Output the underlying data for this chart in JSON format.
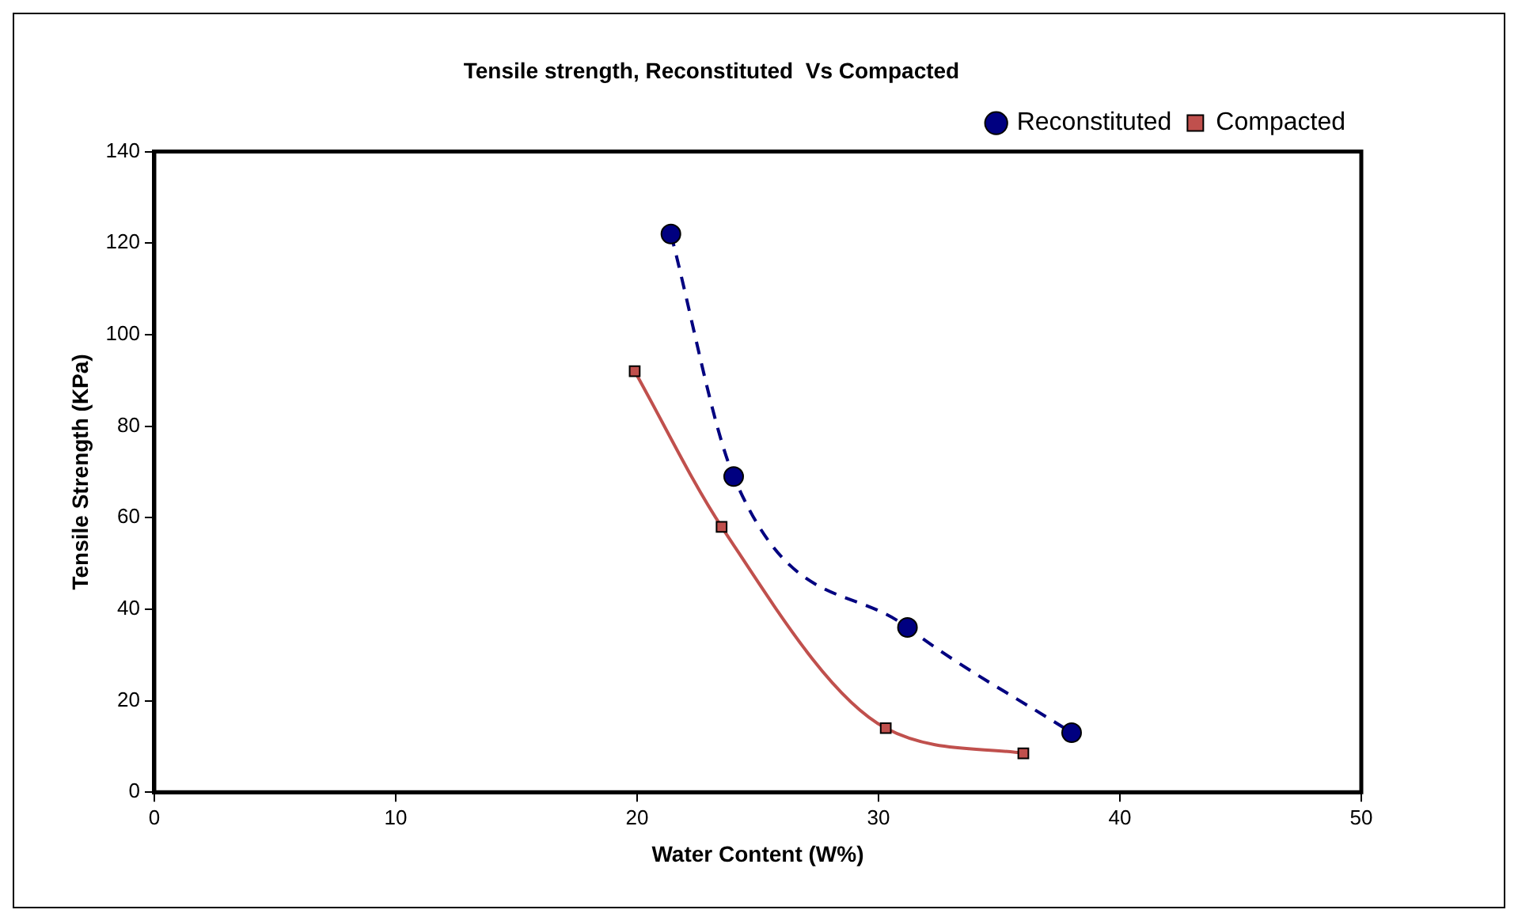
{
  "chart_data": {
    "type": "line",
    "title": "Tensile strength, Reconstituted  Vs Compacted",
    "xlabel": "Water Content (W%)",
    "ylabel": "Tensile Strength (KPa)",
    "xlim": [
      0,
      50
    ],
    "xticks": [
      0,
      10,
      20,
      30,
      40,
      50
    ],
    "ylim": [
      0,
      140
    ],
    "yticks": [
      0,
      20,
      40,
      60,
      80,
      100,
      120,
      140
    ],
    "grid": false,
    "legend": "top right",
    "series": [
      {
        "name": "Reconstituted",
        "color": "#000080",
        "x": [
          21.4,
          24.0,
          31.2,
          38.0
        ],
        "values": [
          122,
          69,
          36,
          13
        ],
        "marker": "circle",
        "line_style": "dashed"
      },
      {
        "name": "Compacted",
        "color": "#c0504d",
        "x": [
          19.9,
          23.5,
          30.3,
          36.0
        ],
        "values": [
          92,
          58,
          14,
          8.5
        ],
        "marker": "square",
        "line_style": "solid"
      }
    ]
  }
}
